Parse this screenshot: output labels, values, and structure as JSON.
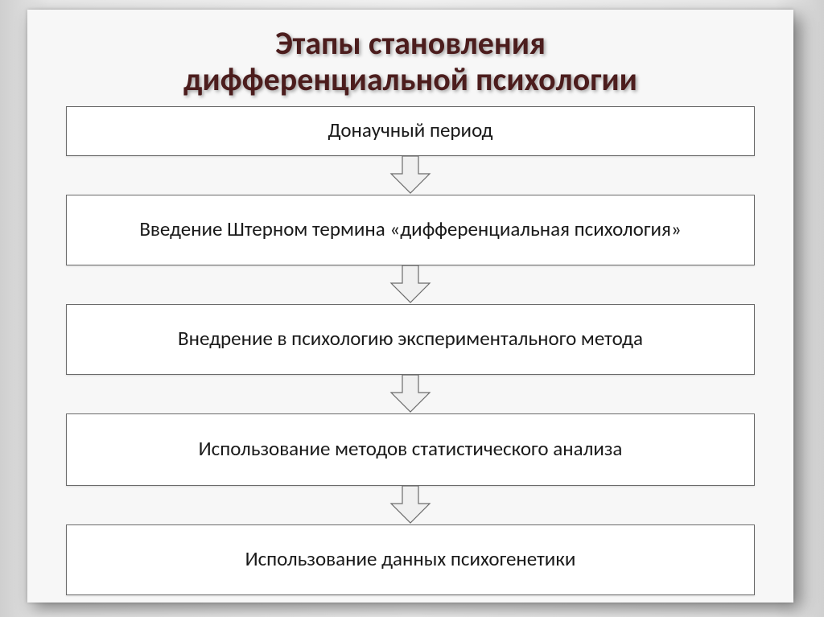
{
  "title": {
    "line1": "Этапы становления",
    "line2": "дифференциальной психологии",
    "color": "#4c1d1d",
    "fontsize": 40
  },
  "diagram": {
    "type": "flowchart",
    "direction": "vertical",
    "node_background": "#ffffff",
    "node_border_color": "#6b6b6b",
    "node_border_width": 1.5,
    "node_text_color": "#1a1a1a",
    "node_fontsize": 25,
    "arrow_fill": "#f0f0f0",
    "arrow_stroke": "#6b6b6b",
    "arrow_stroke_width": 1.2,
    "stage_heights": [
      62,
      88,
      88,
      90,
      88
    ],
    "slide_background": "#f7f7f7",
    "outer_background_gradient": [
      "#cfcfcf",
      "#f3f3f3",
      "#cfcfcf"
    ],
    "stages": [
      {
        "label": "Донаучный период"
      },
      {
        "label": "Введение Штерном термина «дифференциальная психология»"
      },
      {
        "label": "Внедрение в психологию экспериментального метода"
      },
      {
        "label": "Использование методов статистического анализа"
      },
      {
        "label": "Использование данных психогенетики"
      }
    ]
  }
}
